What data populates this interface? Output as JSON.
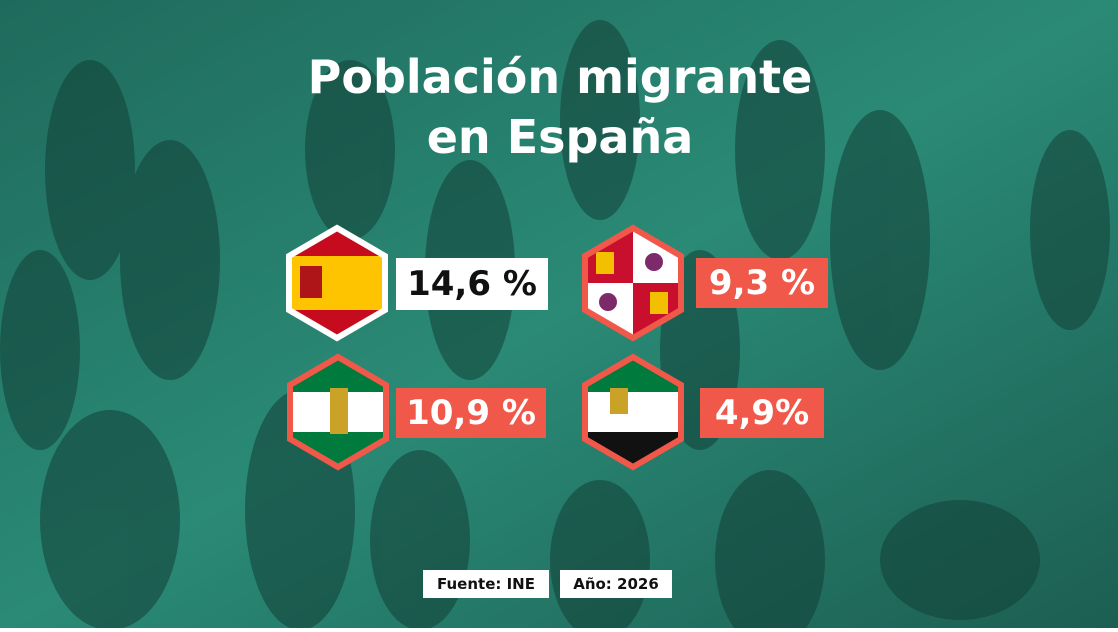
{
  "header": {
    "title_lines": [
      "Población migrante",
      "en España"
    ]
  },
  "items": [
    {
      "label": "14,6 %"
    },
    {
      "label": "9,3 %"
    },
    {
      "label": "10,9 %"
    },
    {
      "label": "4,9%"
    }
  ],
  "footer": {
    "source": "Fuente: INE",
    "year": "Año: 2026"
  }
}
